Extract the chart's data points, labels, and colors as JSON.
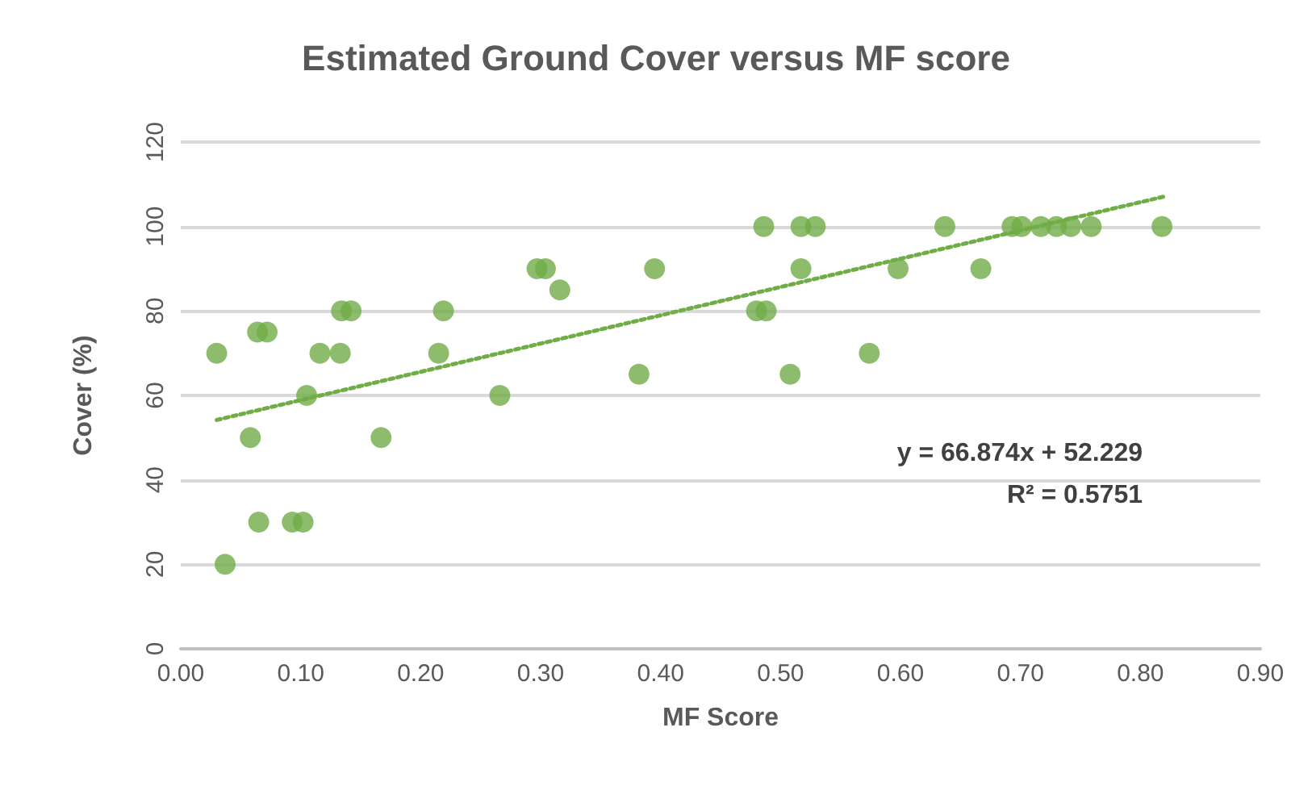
{
  "chart_data": {
    "type": "scatter",
    "title": "Estimated Ground Cover versus MF score",
    "xlabel": "MF Score",
    "ylabel": "Cover (%)",
    "xlim": [
      0,
      0.9
    ],
    "xticks": [
      {
        "value": 0,
        "label": "0.00"
      },
      {
        "value": 0.1,
        "label": "0.10"
      },
      {
        "value": 0.2,
        "label": "0.20"
      },
      {
        "value": 0.3,
        "label": "0.30"
      },
      {
        "value": 0.4,
        "label": "0.40"
      },
      {
        "value": 0.5,
        "label": "0.50"
      },
      {
        "value": 0.6,
        "label": "0.60"
      },
      {
        "value": 0.7,
        "label": "0.70"
      },
      {
        "value": 0.8,
        "label": "0.80"
      },
      {
        "value": 0.9,
        "label": "0.90"
      }
    ],
    "ylim": [
      0,
      120
    ],
    "yticks": [
      0,
      20,
      40,
      60,
      80,
      100,
      120
    ],
    "grid": "y",
    "marker": "circle",
    "series": [
      {
        "color": "#70ad47",
        "x": [
          0.03,
          0.037,
          0.058,
          0.065,
          0.064,
          0.072,
          0.093,
          0.102,
          0.105,
          0.116,
          0.133,
          0.134,
          0.142,
          0.167,
          0.215,
          0.219,
          0.266,
          0.297,
          0.304,
          0.316,
          0.382,
          0.395,
          0.486,
          0.48,
          0.488,
          0.517,
          0.517,
          0.529,
          0.508,
          0.574,
          0.598,
          0.637,
          0.667,
          0.693,
          0.701,
          0.717,
          0.73,
          0.742,
          0.759,
          0.818
        ],
        "values": [
          70,
          20,
          50,
          30,
          75,
          75,
          30,
          30,
          60,
          70,
          70,
          80,
          80,
          50,
          70,
          80,
          60,
          90,
          90,
          85,
          65,
          90,
          100,
          80,
          80,
          90,
          100,
          100,
          65,
          70,
          90,
          100,
          90,
          100,
          100,
          100,
          100,
          100,
          100,
          100
        ]
      },
      {
        "type": "line",
        "color": "#70ad47",
        "line_style": "dotted",
        "marker": "none",
        "x": [
          0.03,
          0.82
        ],
        "values": [
          54.2,
          107.1
        ]
      }
    ],
    "annotations": [
      "y = 66.874x + 52.229",
      "R² = 0.5751"
    ]
  }
}
